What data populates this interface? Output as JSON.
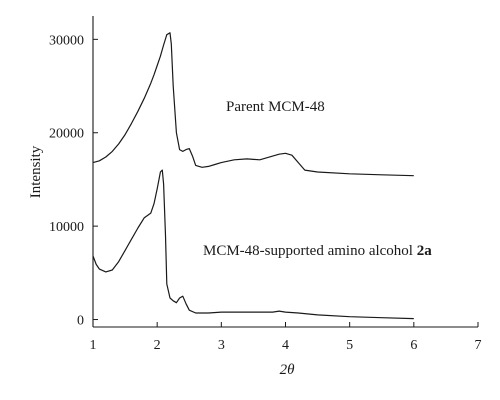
{
  "chart_data": {
    "type": "line",
    "xlabel_symbol": "2θ",
    "ylabel": "Intensity",
    "xlim": [
      1,
      7
    ],
    "ylim": [
      -800,
      32500
    ],
    "xticks": [
      1,
      2,
      3,
      4,
      5,
      6,
      7
    ],
    "yticks": [
      0,
      10000,
      20000,
      30000
    ],
    "grid": false,
    "series": [
      {
        "name": "Parent MCM-48",
        "label_parts": [
          "Parent MCM-48"
        ],
        "x": [
          1.0,
          1.1,
          1.2,
          1.3,
          1.4,
          1.5,
          1.6,
          1.7,
          1.8,
          1.9,
          1.95,
          2.0,
          2.05,
          2.1,
          2.15,
          2.2,
          2.22,
          2.25,
          2.3,
          2.35,
          2.4,
          2.45,
          2.5,
          2.55,
          2.6,
          2.7,
          2.8,
          2.9,
          3.0,
          3.2,
          3.4,
          3.6,
          3.8,
          3.9,
          4.0,
          4.1,
          4.2,
          4.3,
          4.5,
          5.0,
          5.5,
          6.0
        ],
        "y": [
          16800,
          17000,
          17400,
          18000,
          18800,
          19800,
          21000,
          22300,
          23700,
          25300,
          26200,
          27200,
          28200,
          29400,
          30500,
          30700,
          29500,
          25000,
          20000,
          18200,
          18000,
          18200,
          18300,
          17500,
          16500,
          16300,
          16400,
          16600,
          16800,
          17100,
          17200,
          17100,
          17500,
          17700,
          17800,
          17600,
          16800,
          16000,
          15800,
          15600,
          15500,
          15400
        ]
      },
      {
        "name": "MCM-48-supported amino alcohol 2a",
        "label_parts": [
          "MCM-48-supported amino alcohol ",
          "2a"
        ],
        "x": [
          1.0,
          1.05,
          1.1,
          1.2,
          1.3,
          1.4,
          1.5,
          1.6,
          1.7,
          1.8,
          1.9,
          1.95,
          2.0,
          2.05,
          2.08,
          2.1,
          2.13,
          2.15,
          2.2,
          2.25,
          2.3,
          2.35,
          2.4,
          2.45,
          2.5,
          2.6,
          2.8,
          3.0,
          3.5,
          3.8,
          3.9,
          4.0,
          4.2,
          4.5,
          5.0,
          5.5,
          6.0
        ],
        "y": [
          6800,
          5900,
          5400,
          5100,
          5300,
          6200,
          7400,
          8600,
          9800,
          10900,
          11400,
          12400,
          14000,
          15800,
          16000,
          14500,
          9000,
          3800,
          2300,
          2000,
          1800,
          2300,
          2500,
          1700,
          1000,
          700,
          700,
          800,
          800,
          800,
          900,
          800,
          700,
          500,
          300,
          200,
          100
        ]
      }
    ]
  }
}
